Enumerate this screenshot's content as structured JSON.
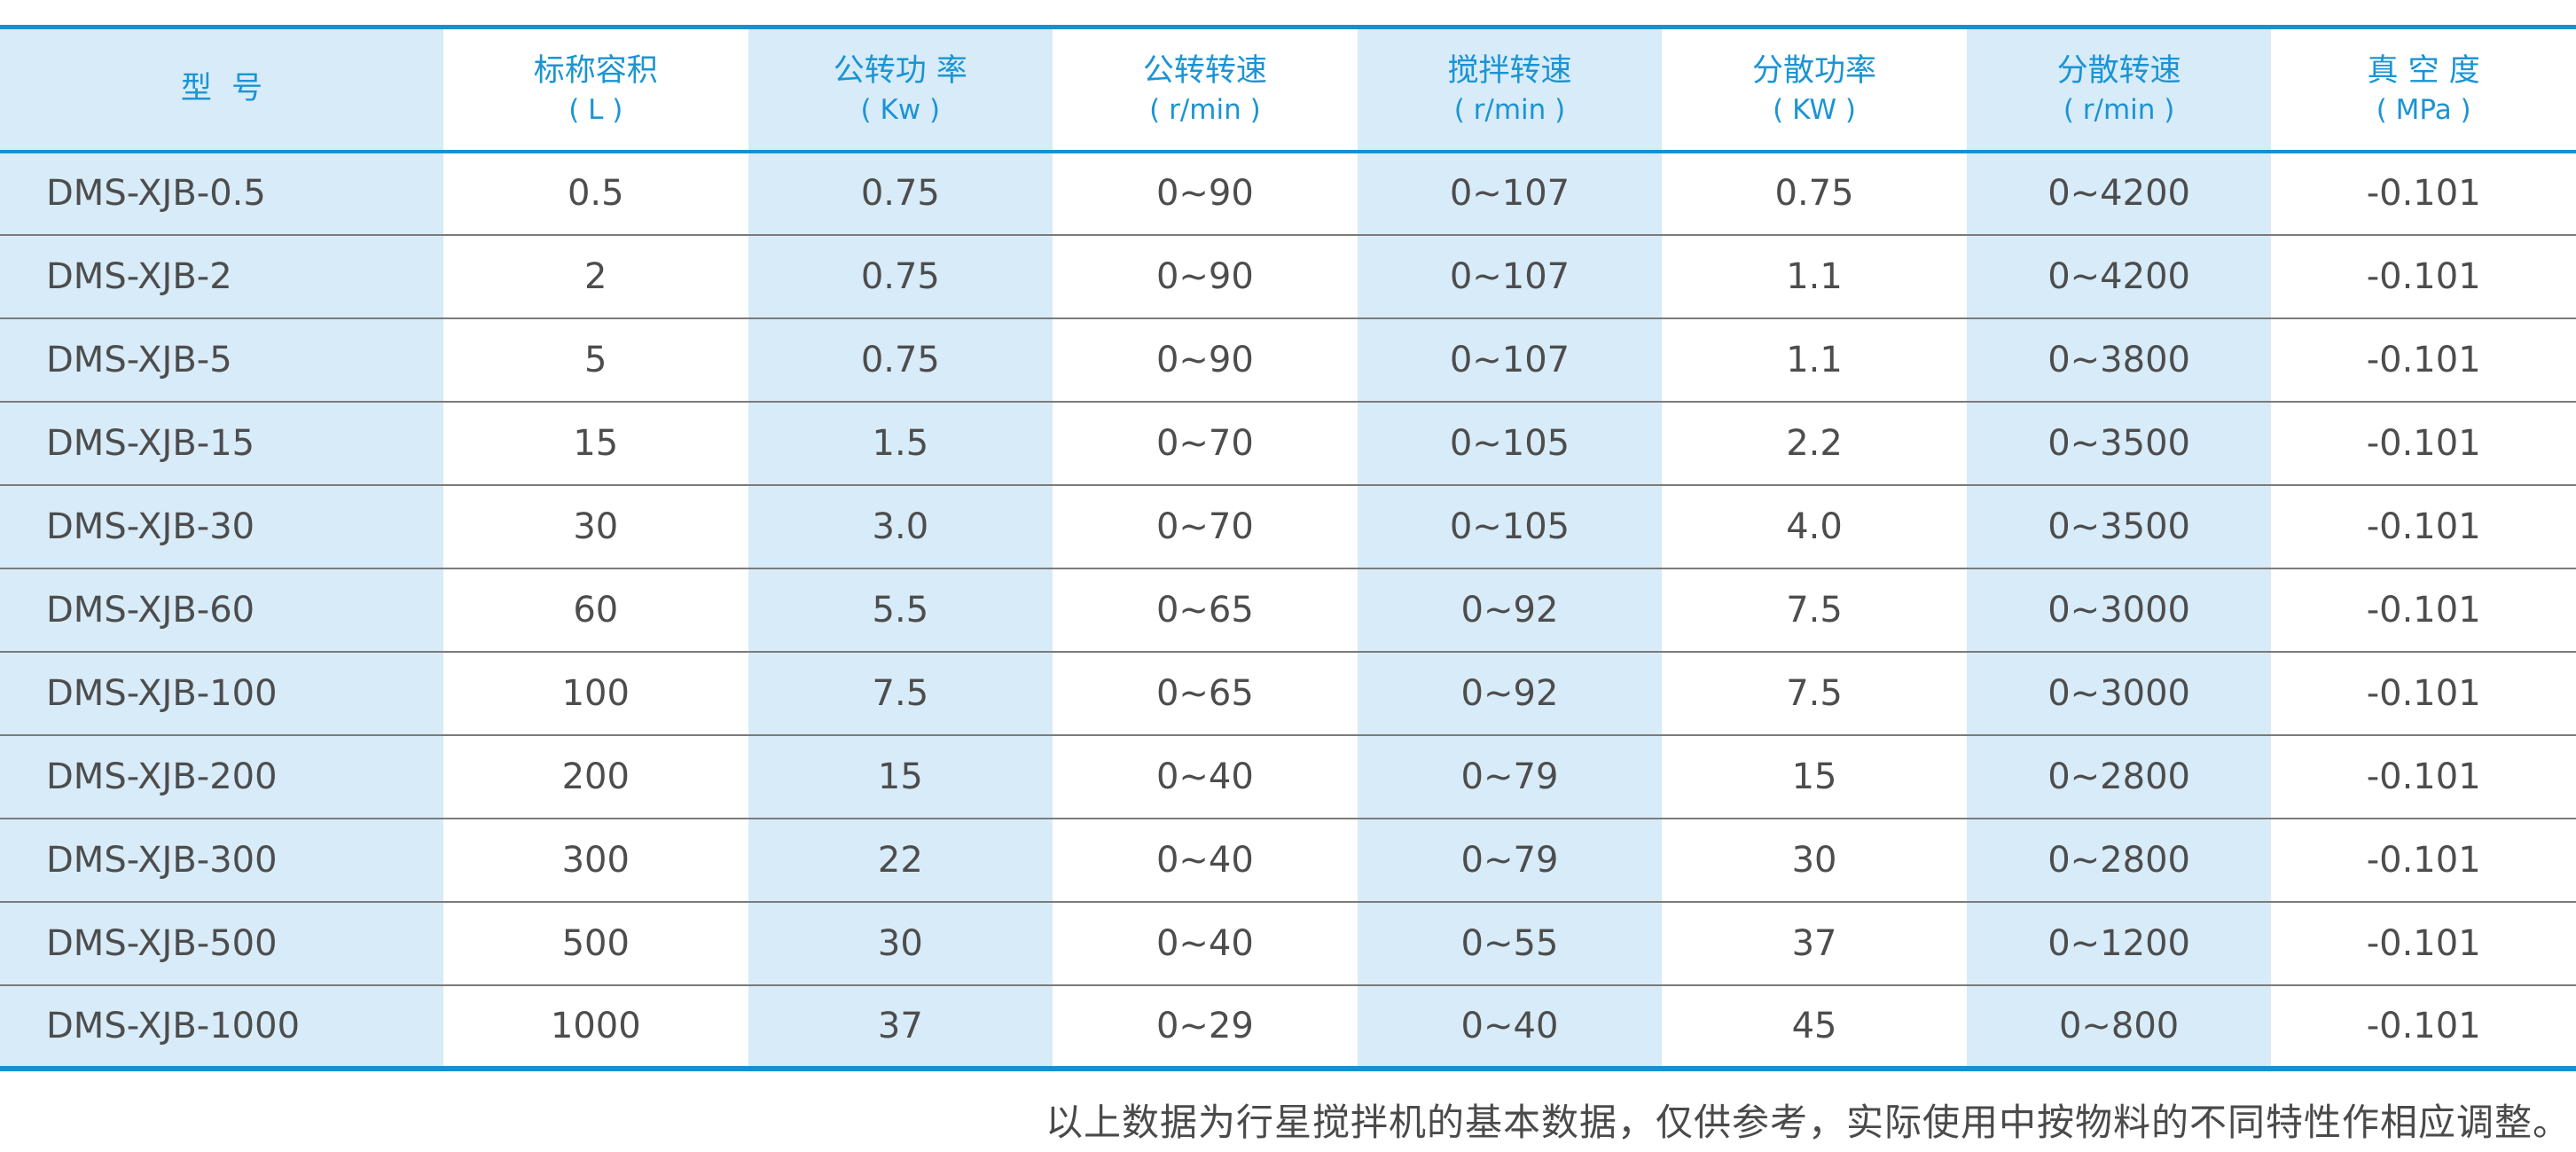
{
  "colors": {
    "accent_blue": "#1791ce",
    "header_text_blue": "#1b94d3",
    "column_tint_blue": "#d8ebf8",
    "row_divider_gray": "#7b7b7b",
    "body_text_gray": "#4d4d4d"
  },
  "table": {
    "columns": [
      {
        "title": "型  号",
        "unit": ""
      },
      {
        "title": "标称容积",
        "unit": "( L )"
      },
      {
        "title": "公转功 率",
        "unit": "( Kw )"
      },
      {
        "title": "公转转速",
        "unit": "( r/min )"
      },
      {
        "title": "搅拌转速",
        "unit": "( r/min )"
      },
      {
        "title": "分散功率",
        "unit": "( KW )"
      },
      {
        "title": "分散转速",
        "unit": "( r/min )"
      },
      {
        "title": "真 空 度",
        "unit": "( MPa )"
      }
    ],
    "rows": [
      [
        "DMS-XJB-0.5",
        "0.5",
        "0.75",
        "0~90",
        "0~107",
        "0.75",
        "0~4200",
        "-0.101"
      ],
      [
        "DMS-XJB-2",
        "2",
        "0.75",
        "0~90",
        "0~107",
        "1.1",
        "0~4200",
        "-0.101"
      ],
      [
        "DMS-XJB-5",
        "5",
        "0.75",
        "0~90",
        "0~107",
        "1.1",
        "0~3800",
        "-0.101"
      ],
      [
        "DMS-XJB-15",
        "15",
        "1.5",
        "0~70",
        "0~105",
        "2.2",
        "0~3500",
        "-0.101"
      ],
      [
        "DMS-XJB-30",
        "30",
        "3.0",
        "0~70",
        "0~105",
        "4.0",
        "0~3500",
        "-0.101"
      ],
      [
        "DMS-XJB-60",
        "60",
        "5.5",
        "0~65",
        "0~92",
        "7.5",
        "0~3000",
        "-0.101"
      ],
      [
        "DMS-XJB-100",
        "100",
        "7.5",
        "0~65",
        "0~92",
        "7.5",
        "0~3000",
        "-0.101"
      ],
      [
        "DMS-XJB-200",
        "200",
        "15",
        "0~40",
        "0~79",
        "15",
        "0~2800",
        "-0.101"
      ],
      [
        "DMS-XJB-300",
        "300",
        "22",
        "0~40",
        "0~79",
        "30",
        "0~2800",
        "-0.101"
      ],
      [
        "DMS-XJB-500",
        "500",
        "30",
        "0~40",
        "0~55",
        "37",
        "0~1200",
        "-0.101"
      ],
      [
        "DMS-XJB-1000",
        "1000",
        "37",
        "0~29",
        "0~40",
        "45",
        "0~800",
        "-0.101"
      ]
    ]
  },
  "footer": {
    "note": "以上数据为行星搅拌机的基本数据，仅供参考，实际使用中按物料的不同特性作相应调整。"
  }
}
